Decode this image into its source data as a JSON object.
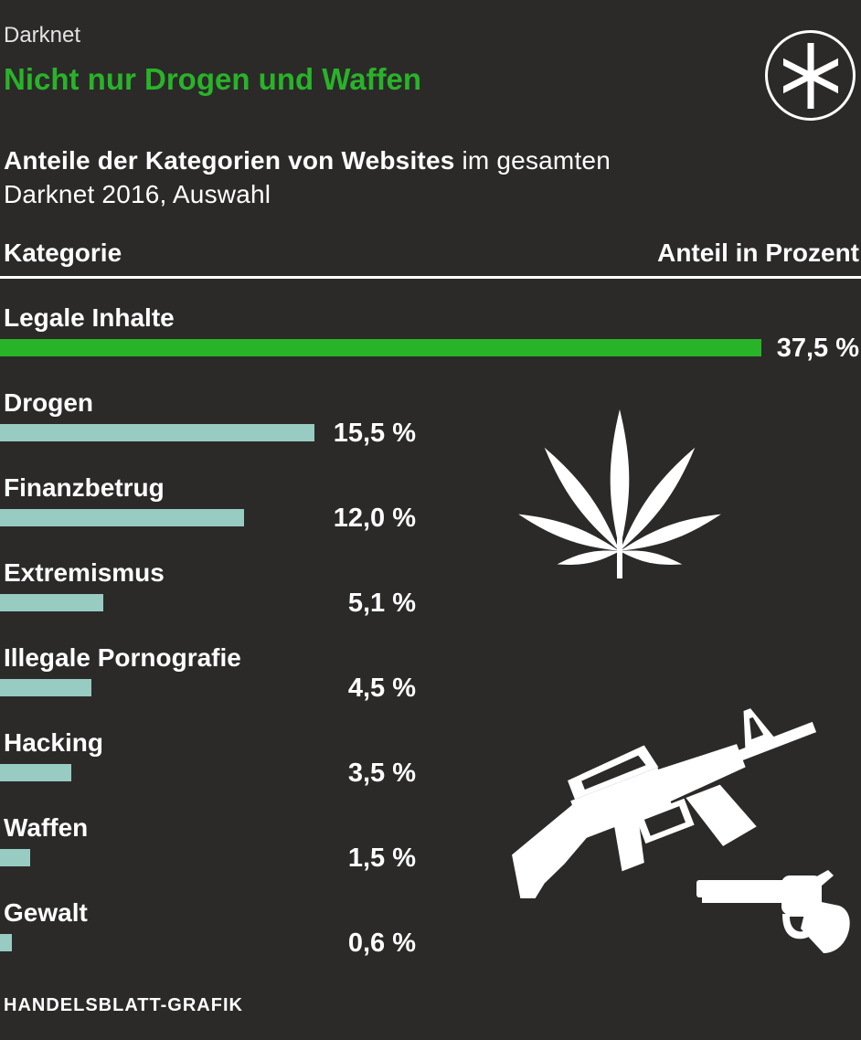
{
  "header": {
    "kicker": "Darknet",
    "title": "Nicht nur Drogen und Waffen",
    "subtitle_bold": "Anteile der Kategorien von Websites",
    "subtitle_rest": " im gesamten",
    "subtitle_line2": "Darknet 2016, Auswahl"
  },
  "table": {
    "col_left": "Kategorie",
    "col_right": "Anteil in Prozent"
  },
  "chart_data": {
    "type": "bar",
    "orientation": "horizontal",
    "title": "Nicht nur Drogen und Waffen",
    "value_axis_label": "Anteil in Prozent",
    "categories": [
      "Legale Inhalte",
      "Drogen",
      "Finanzbetrug",
      "Extremismus",
      "Illegale Pornografie",
      "Hacking",
      "Waffen",
      "Gewalt"
    ],
    "values": [
      37.5,
      15.5,
      12.0,
      5.1,
      4.5,
      3.5,
      1.5,
      0.6
    ],
    "value_labels": [
      "37,5 %",
      "15,5 %",
      "12,0 %",
      "5,1 %",
      "4,5 %",
      "3,5 %",
      "1,5 %",
      "0,6 %"
    ],
    "unit": "percent",
    "xlim": [
      0,
      37.5
    ],
    "grid": false,
    "legend": false,
    "bar_colors": [
      "#29b329",
      "#98cbc2",
      "#98cbc2",
      "#98cbc2",
      "#98cbc2",
      "#98cbc2",
      "#98cbc2",
      "#98cbc2"
    ],
    "highlight_color": "#29b329",
    "base_color": "#98cbc2"
  },
  "icons": {
    "badge": "asterisk-badge-icon",
    "drugs": "cannabis-leaf-icon",
    "weapons_rifle": "rifle-icon",
    "weapons_revolver": "revolver-icon"
  },
  "footer": {
    "credit": "HANDELSBLATT-GRAFIK"
  },
  "colors": {
    "background": "#2b2a29",
    "green": "#29b329",
    "teal": "#98cbc2",
    "white": "#ffffff"
  }
}
